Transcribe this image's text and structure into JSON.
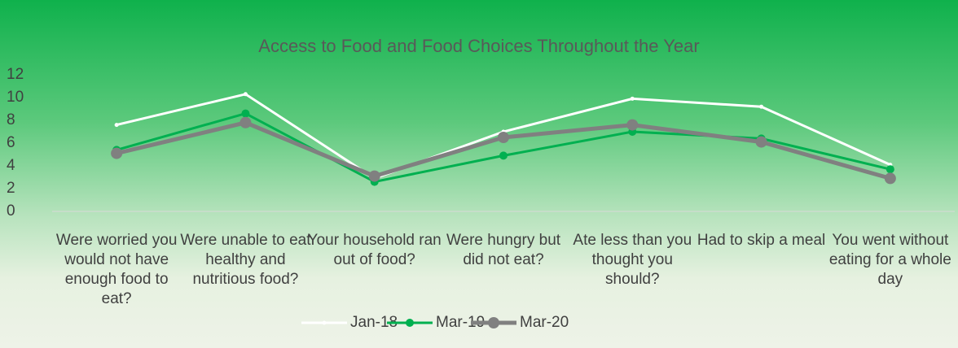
{
  "chart_data": {
    "type": "line",
    "title": "Access to Food and Food Choices Throughout the Year",
    "categories": [
      "Were worried you would not have enough food to eat?",
      "Were unable to eat healthy and nutritious food?",
      "Your household ran out of food?",
      "Were hungry but did not eat?",
      "Ate less than you thought you should?",
      "Had to skip a meal",
      "You went without eating for a whole day"
    ],
    "series": [
      {
        "name": "Jan-18",
        "color": "#ffffff",
        "values": [
          7.6,
          10.3,
          2.9,
          7.0,
          9.9,
          9.2,
          4.1
        ]
      },
      {
        "name": "Mar-19",
        "color": "#00b050",
        "values": [
          5.4,
          8.6,
          2.6,
          4.9,
          7.0,
          6.4,
          3.7
        ]
      },
      {
        "name": "Mar-20",
        "color": "#808080",
        "values": [
          5.1,
          7.8,
          3.1,
          6.5,
          7.6,
          6.1,
          2.9
        ]
      }
    ],
    "ylim": [
      0,
      12
    ],
    "yticks": [
      0,
      2,
      4,
      6,
      8,
      10,
      12
    ],
    "grid": false,
    "legend": "bottom"
  }
}
